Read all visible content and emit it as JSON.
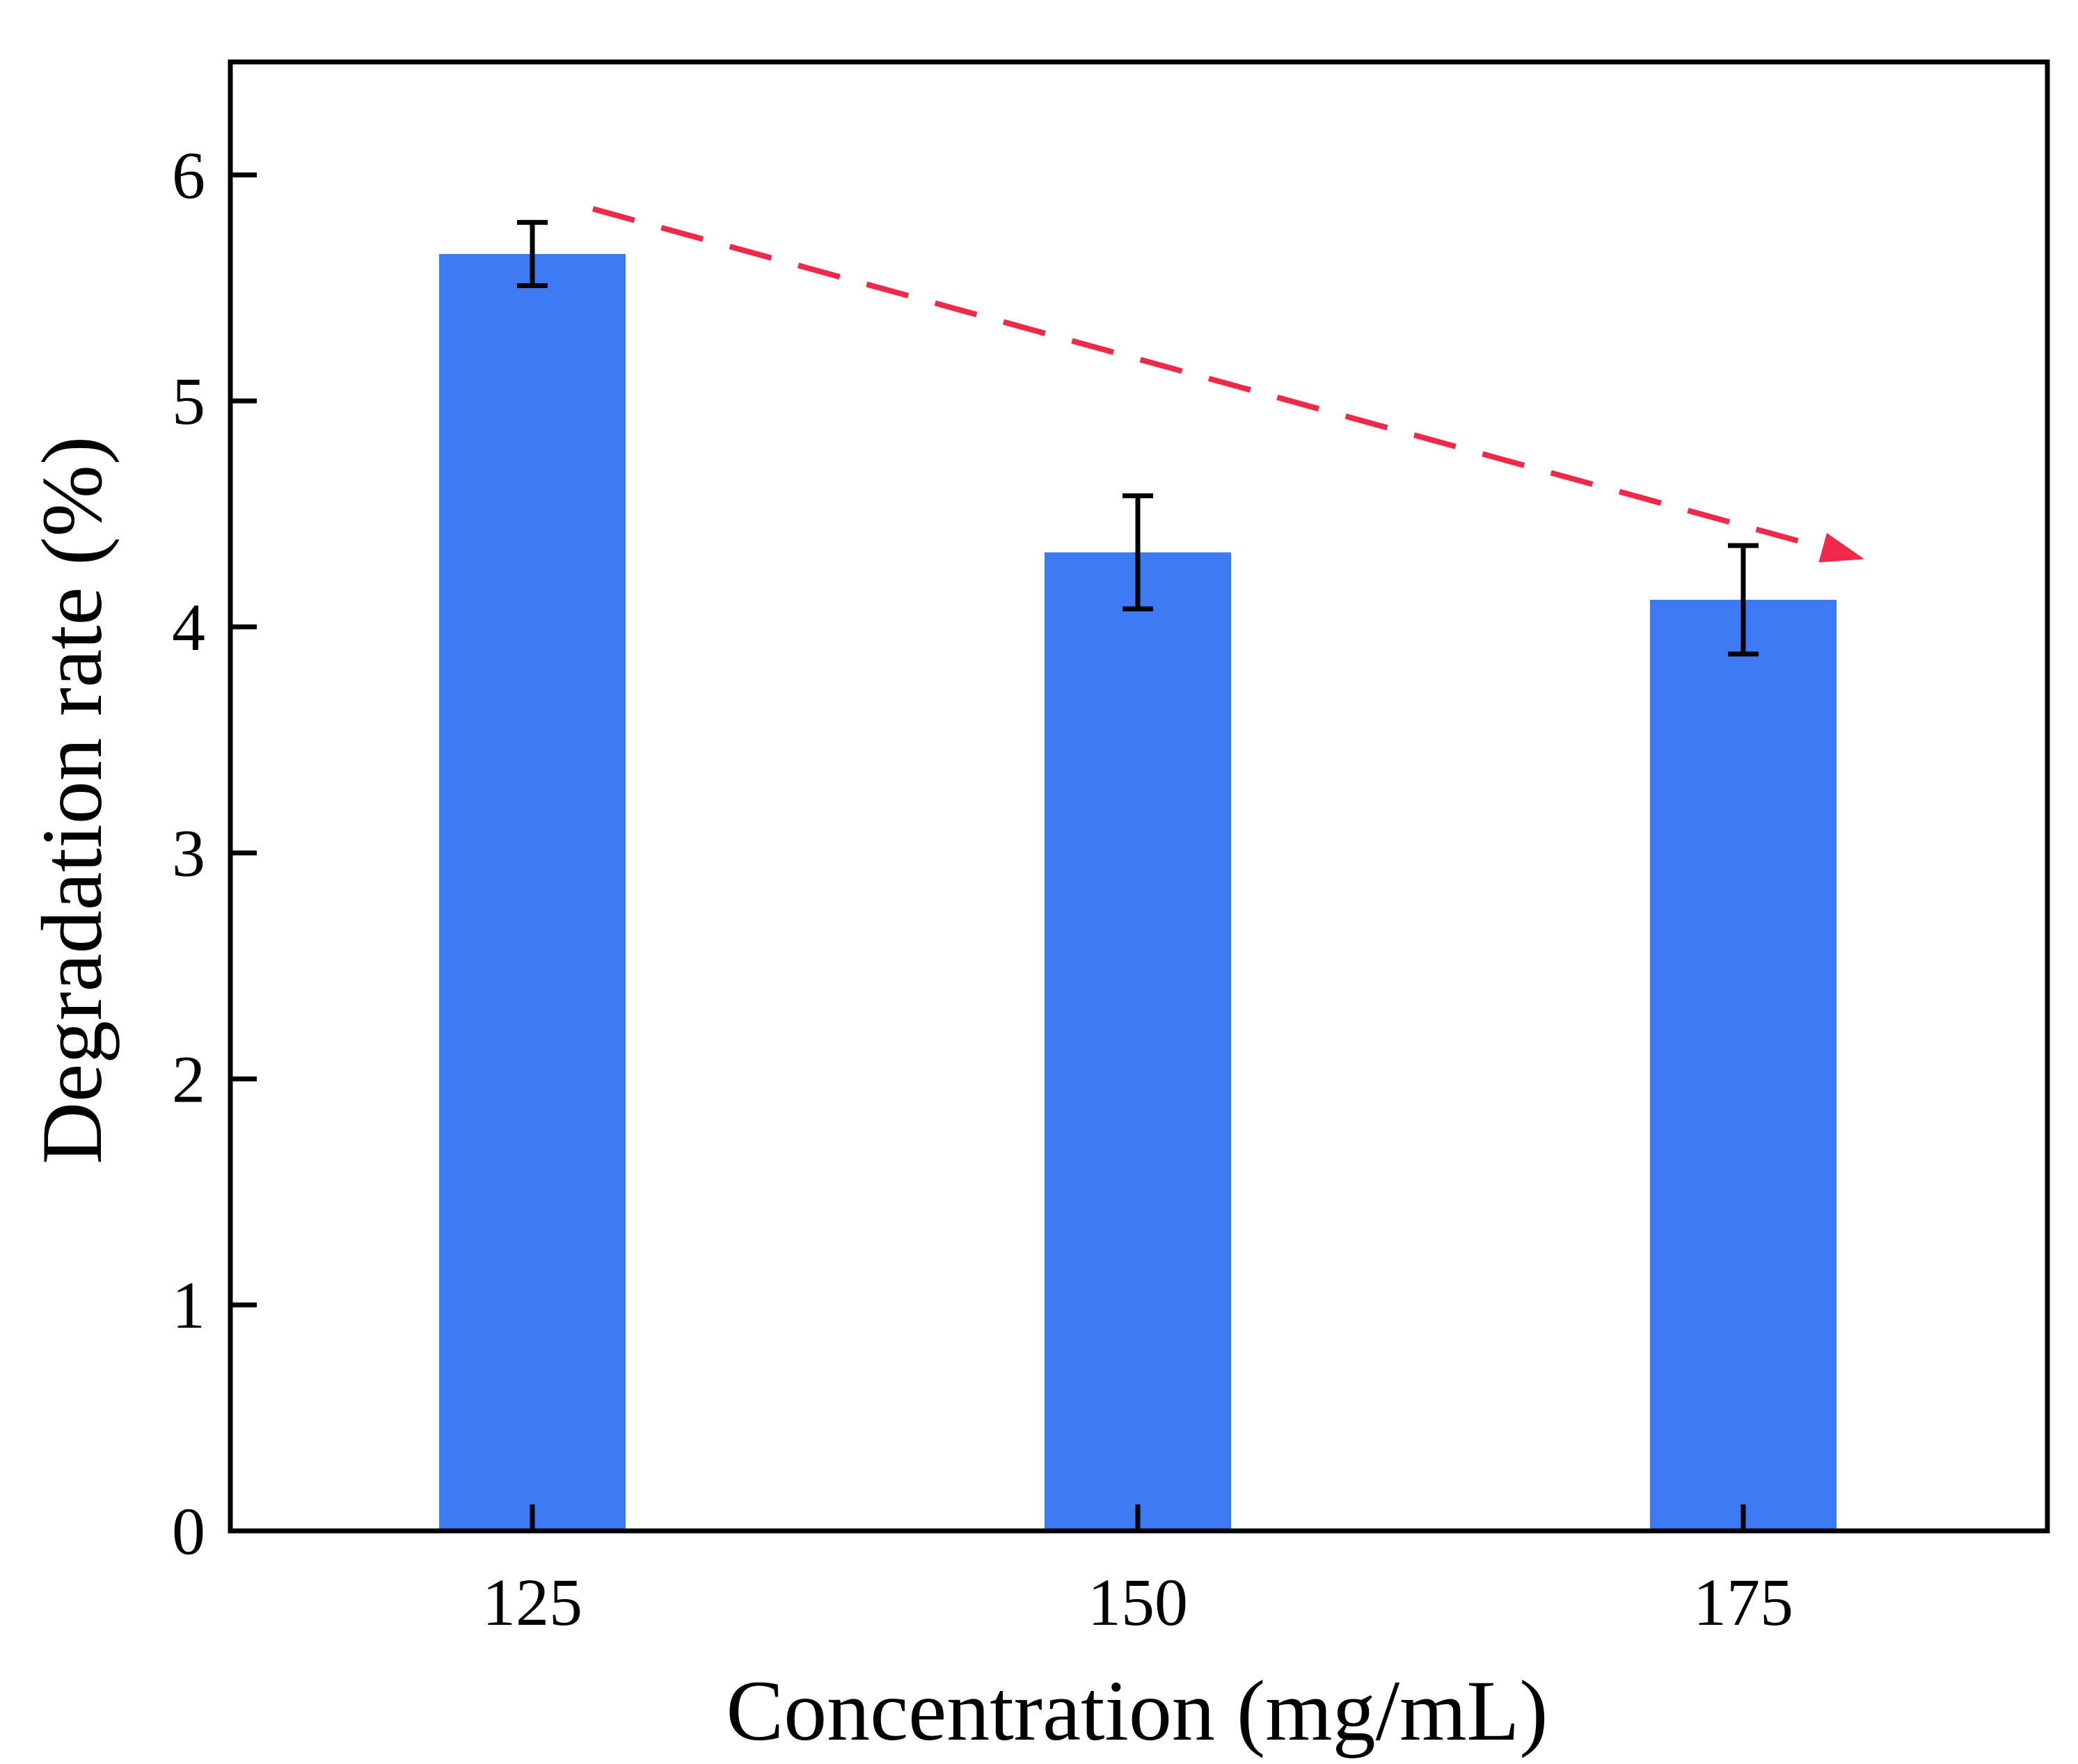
{
  "chart_data": {
    "type": "bar",
    "title": "",
    "xlabel": "Concentration (mg/mL)",
    "ylabel": "Degradation rate (%)",
    "categories": [
      "125",
      "150",
      "175"
    ],
    "values": [
      5.65,
      4.33,
      4.12
    ],
    "errors": [
      0.14,
      0.25,
      0.24
    ],
    "ylim": [
      0,
      6.5
    ],
    "yticks": [
      0,
      1,
      2,
      3,
      4,
      5,
      6
    ],
    "grid": false,
    "legend": "none",
    "bar_color": "#3D7BF5",
    "error_bar_color": "#000000",
    "trend_arrow": {
      "from": [
        0.1,
        5.85
      ],
      "to": [
        2.2,
        4.3
      ],
      "color": "#F0284A",
      "style": "dashed"
    }
  }
}
